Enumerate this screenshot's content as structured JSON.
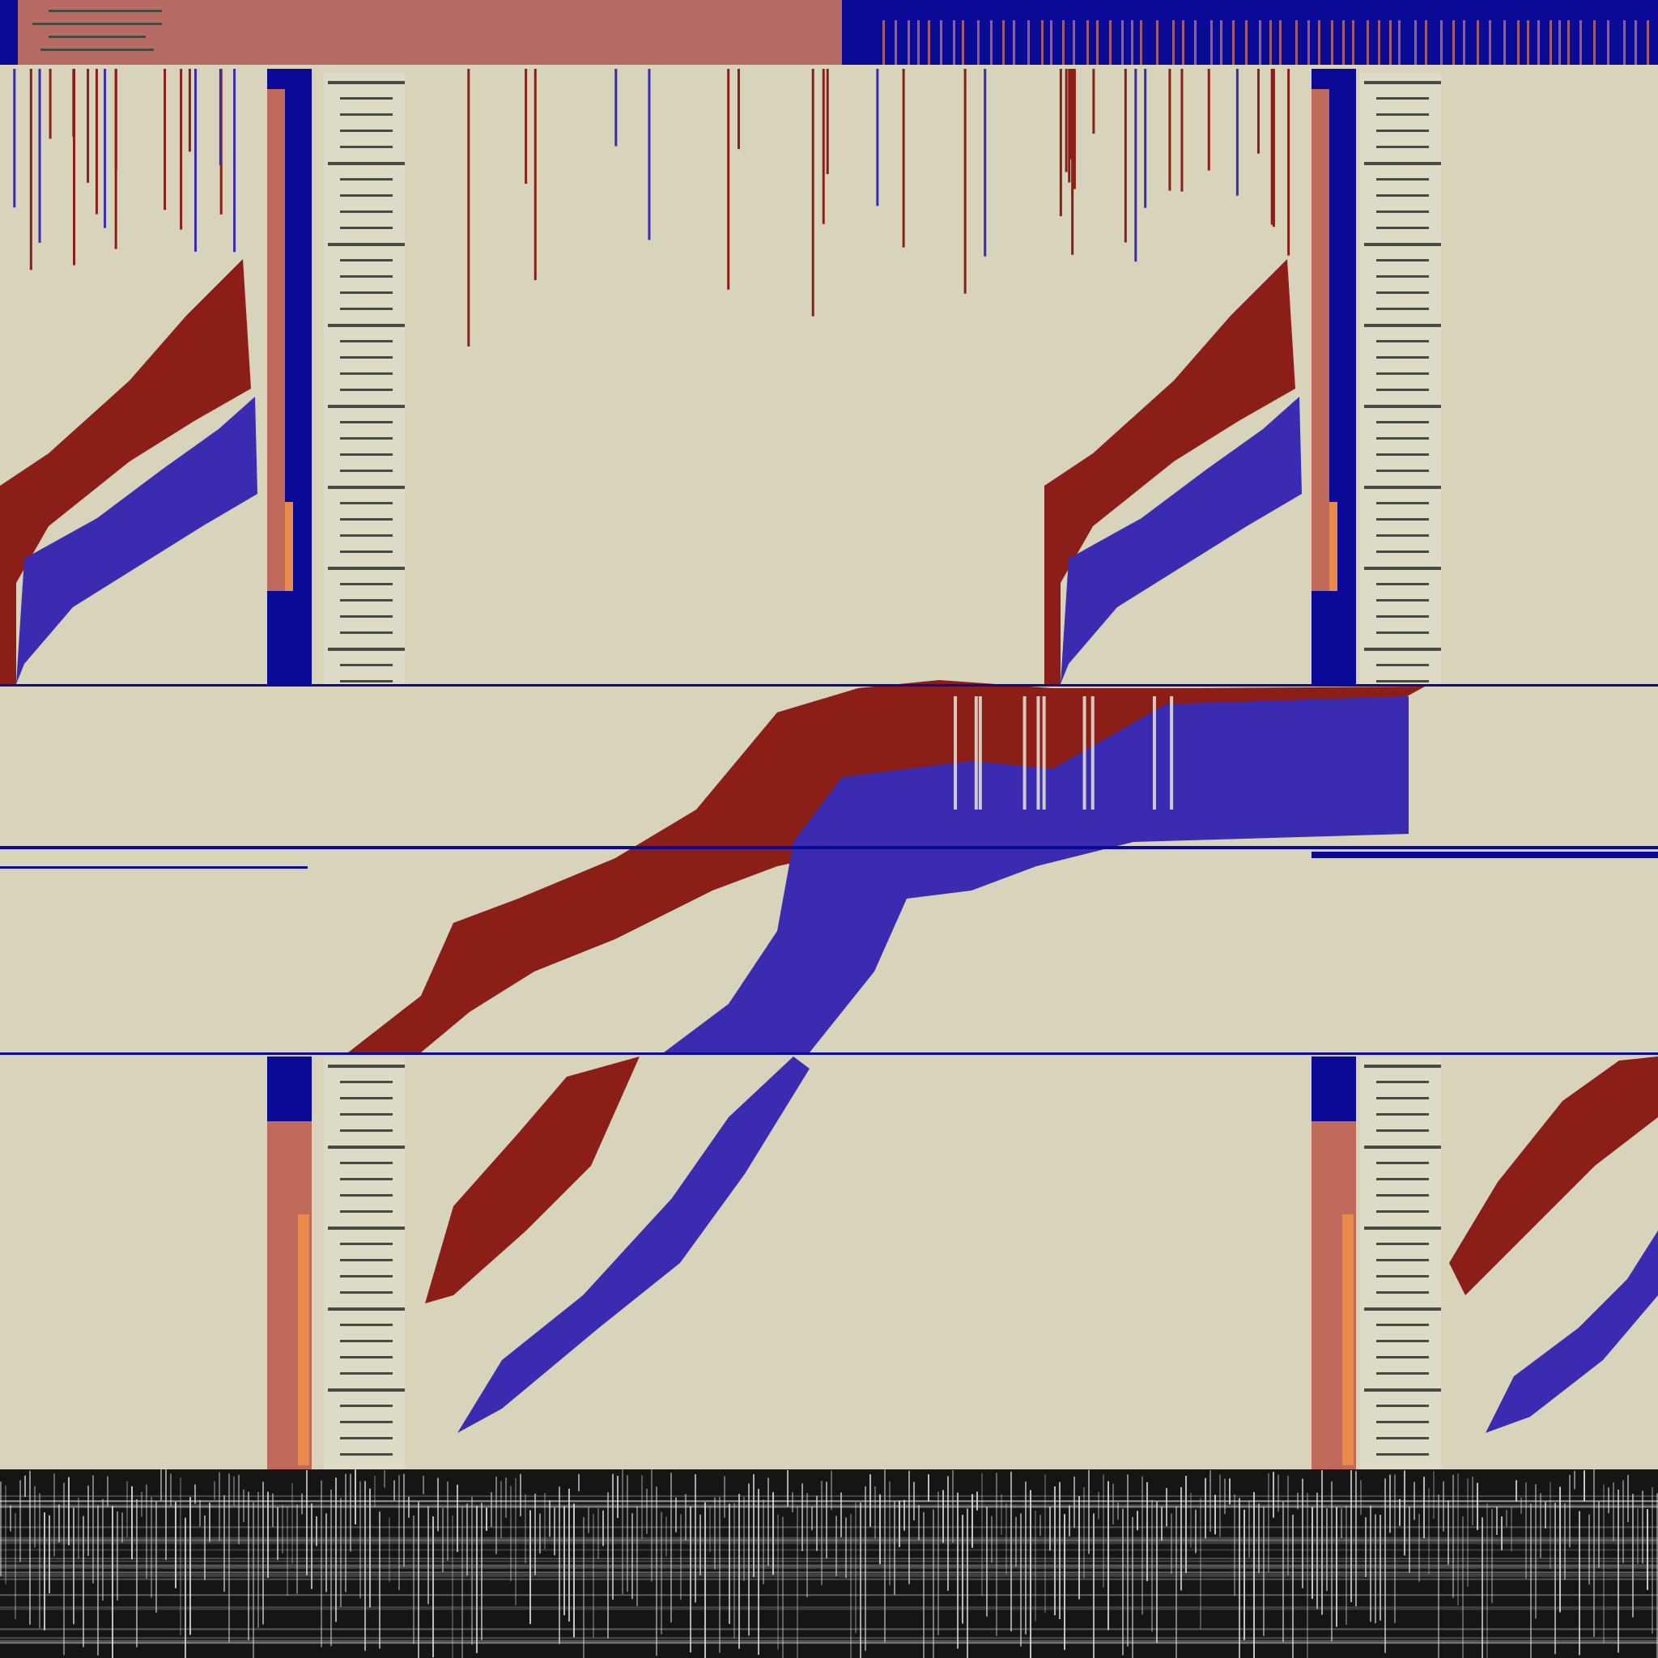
{
  "palette": {
    "background": "#d8d4bc",
    "header_band": "#b86a64",
    "rust_red": "#8b1f18",
    "violet_blue": "#3b2bb0",
    "navy": "#0a0a96",
    "salmon": "#c06a5c",
    "orange": "#e88a4c",
    "tick_dark": "#4a4a40",
    "tick_light": "#e8e6d8",
    "noise_dark": "#151515",
    "noise_light": "#e8e8e8"
  }
}
